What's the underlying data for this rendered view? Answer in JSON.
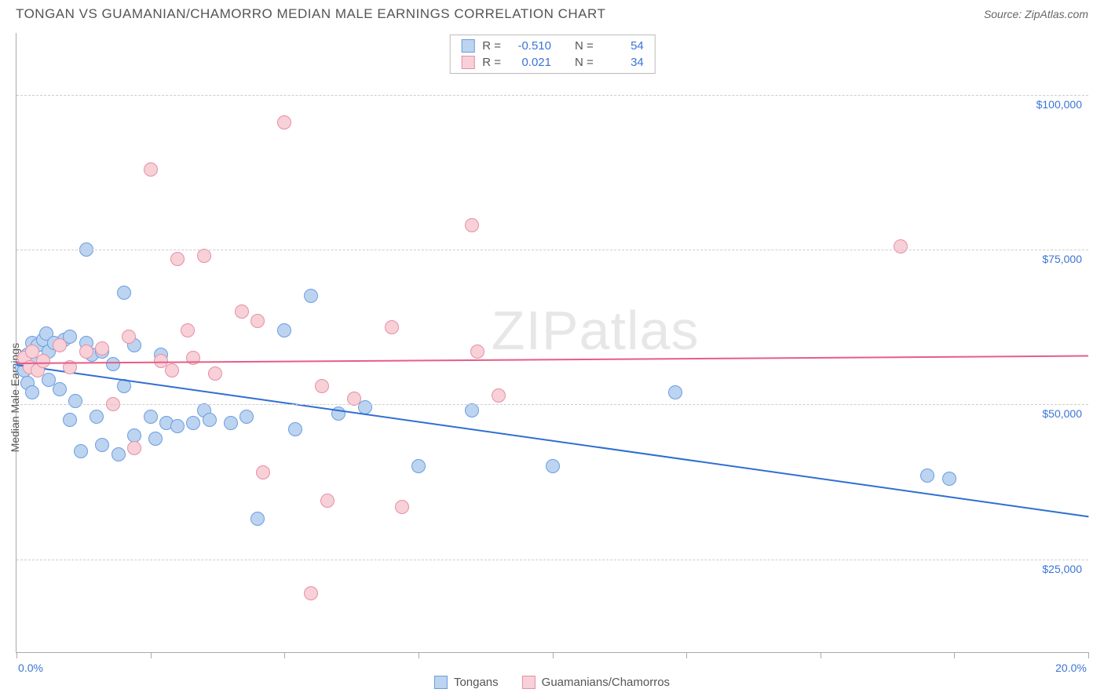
{
  "title": "TONGAN VS GUAMANIAN/CHAMORRO MEDIAN MALE EARNINGS CORRELATION CHART",
  "source": "Source: ZipAtlas.com",
  "y_axis_label": "Median Male Earnings",
  "watermark": "ZIPatlas",
  "chart": {
    "type": "scatter",
    "xlim": [
      0,
      20
    ],
    "ylim": [
      10000,
      110000
    ],
    "x_ticks": [
      0,
      2.5,
      5,
      7.5,
      10,
      12.5,
      15,
      17.5,
      20
    ],
    "x_tick_labels": {
      "0": "0.0%",
      "20": "20.0%"
    },
    "y_gridlines": [
      25000,
      50000,
      75000,
      100000
    ],
    "y_tick_labels": {
      "25000": "$25,000",
      "50000": "$50,000",
      "75000": "$75,000",
      "100000": "$100,000"
    },
    "grid_color": "#cccccc",
    "axis_color": "#aaaaaa",
    "background_color": "#ffffff",
    "series": [
      {
        "name": "Tongans",
        "fill_color": "#bcd4f0",
        "stroke_color": "#6a9de0",
        "line_color": "#2f6fd0",
        "marker_radius": 9,
        "R": "-0.510",
        "N": "54",
        "trend": {
          "x1": 0,
          "y1": 56500,
          "x2": 20,
          "y2": 32000
        },
        "points": [
          [
            0.1,
            56000
          ],
          [
            0.15,
            55500
          ],
          [
            0.2,
            58000
          ],
          [
            0.2,
            53500
          ],
          [
            0.25,
            57000
          ],
          [
            0.3,
            60000
          ],
          [
            0.3,
            52000
          ],
          [
            0.35,
            56500
          ],
          [
            0.4,
            59500
          ],
          [
            0.5,
            60500
          ],
          [
            0.55,
            61500
          ],
          [
            0.6,
            58500
          ],
          [
            0.6,
            54000
          ],
          [
            0.7,
            60000
          ],
          [
            0.8,
            52500
          ],
          [
            0.9,
            60500
          ],
          [
            1.0,
            47500
          ],
          [
            1.0,
            61000
          ],
          [
            1.1,
            50500
          ],
          [
            1.2,
            42500
          ],
          [
            1.3,
            75000
          ],
          [
            1.3,
            60000
          ],
          [
            1.4,
            58000
          ],
          [
            1.5,
            48000
          ],
          [
            1.6,
            58500
          ],
          [
            1.6,
            43500
          ],
          [
            1.8,
            56500
          ],
          [
            1.9,
            42000
          ],
          [
            2.0,
            68000
          ],
          [
            2.0,
            53000
          ],
          [
            2.2,
            45000
          ],
          [
            2.2,
            59500
          ],
          [
            2.5,
            48000
          ],
          [
            2.6,
            44500
          ],
          [
            2.7,
            58000
          ],
          [
            2.8,
            47000
          ],
          [
            3.0,
            46500
          ],
          [
            3.3,
            47000
          ],
          [
            3.5,
            49000
          ],
          [
            3.6,
            47500
          ],
          [
            4.0,
            47000
          ],
          [
            4.3,
            48000
          ],
          [
            4.5,
            31500
          ],
          [
            5.0,
            62000
          ],
          [
            5.2,
            46000
          ],
          [
            5.5,
            67500
          ],
          [
            6.0,
            48500
          ],
          [
            6.5,
            49500
          ],
          [
            7.5,
            40000
          ],
          [
            8.5,
            49000
          ],
          [
            10.0,
            40000
          ],
          [
            12.3,
            52000
          ],
          [
            17.0,
            38500
          ],
          [
            17.4,
            38000
          ]
        ]
      },
      {
        "name": "Guamanians/Chamorros",
        "fill_color": "#f7d0d8",
        "stroke_color": "#e78fa4",
        "line_color": "#e75d87",
        "marker_radius": 9,
        "R": "0.021",
        "N": "34",
        "trend": {
          "x1": 0,
          "y1": 56800,
          "x2": 20,
          "y2": 58000
        },
        "points": [
          [
            0.15,
            57500
          ],
          [
            0.25,
            56000
          ],
          [
            0.3,
            58500
          ],
          [
            0.4,
            55500
          ],
          [
            0.5,
            57000
          ],
          [
            0.8,
            59500
          ],
          [
            1.0,
            56000
          ],
          [
            1.3,
            58500
          ],
          [
            1.6,
            59000
          ],
          [
            1.8,
            50000
          ],
          [
            2.1,
            61000
          ],
          [
            2.2,
            43000
          ],
          [
            2.5,
            88000
          ],
          [
            2.7,
            57000
          ],
          [
            2.9,
            55500
          ],
          [
            3.0,
            73500
          ],
          [
            3.2,
            62000
          ],
          [
            3.3,
            57500
          ],
          [
            3.5,
            74000
          ],
          [
            3.7,
            55000
          ],
          [
            4.2,
            65000
          ],
          [
            4.5,
            63500
          ],
          [
            4.6,
            39000
          ],
          [
            5.0,
            95500
          ],
          [
            5.5,
            19500
          ],
          [
            5.7,
            53000
          ],
          [
            5.8,
            34500
          ],
          [
            6.3,
            51000
          ],
          [
            7.0,
            62500
          ],
          [
            7.2,
            33500
          ],
          [
            8.5,
            79000
          ],
          [
            8.6,
            58500
          ],
          [
            9.0,
            51500
          ],
          [
            16.5,
            75500
          ]
        ]
      }
    ]
  },
  "legend_top": [
    {
      "swatch_fill": "#bcd4f0",
      "swatch_stroke": "#6a9de0",
      "r_label": "R =",
      "r_value": "-0.510",
      "n_label": "N =",
      "n_value": "54"
    },
    {
      "swatch_fill": "#f7d0d8",
      "swatch_stroke": "#e78fa4",
      "r_label": "R =",
      "r_value": "0.021",
      "n_label": "N =",
      "n_value": "34"
    }
  ],
  "legend_bottom": [
    {
      "swatch_fill": "#bcd4f0",
      "swatch_stroke": "#6a9de0",
      "label": "Tongans"
    },
    {
      "swatch_fill": "#f7d0d8",
      "swatch_stroke": "#e78fa4",
      "label": "Guamanians/Chamorros"
    }
  ]
}
